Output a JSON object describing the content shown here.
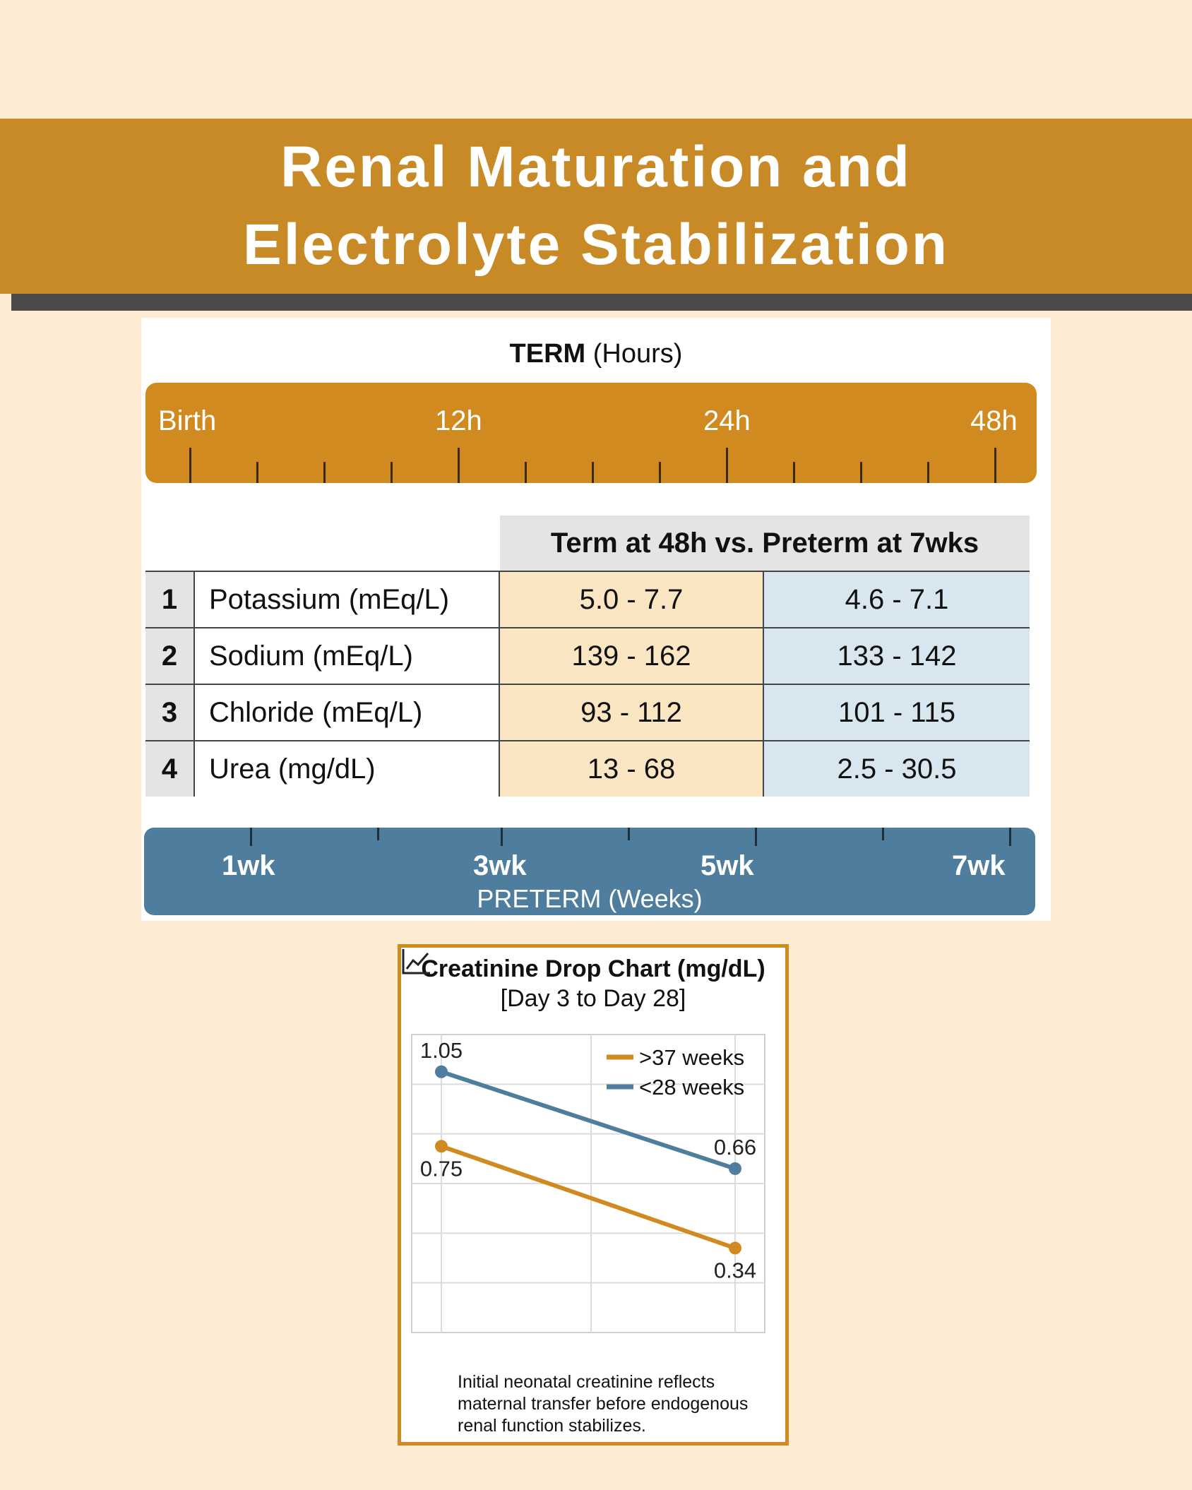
{
  "title": {
    "line1": "Renal Maturation and",
    "line2": "Electrolyte Stabilization"
  },
  "term_timeline": {
    "title_bold": "TERM",
    "title_rest": " (Hours)",
    "labels": [
      "Birth",
      "12h",
      "24h",
      "48h"
    ]
  },
  "table": {
    "header": "Term at 48h vs. Preterm at 7wks",
    "rows": [
      {
        "num": "1",
        "label": "Potassium (mEq/L)",
        "term": "5.0 - 7.7",
        "preterm": "4.6 - 7.1"
      },
      {
        "num": "2",
        "label": "Sodium (mEq/L)",
        "term": "139 - 162",
        "preterm": "133 - 142"
      },
      {
        "num": "3",
        "label": "Chloride (mEq/L)",
        "term": "93 - 112",
        "preterm": "101 - 115"
      },
      {
        "num": "4",
        "label": "Urea (mg/dL)",
        "term": "13 - 68",
        "preterm": "2.5 - 30.5"
      }
    ]
  },
  "preterm_timeline": {
    "title": "PRETERM (Weeks)",
    "labels": [
      "1wk",
      "3wk",
      "5wk",
      "7wk"
    ]
  },
  "chart_data": {
    "type": "line",
    "title": "Creatinine Drop Chart (mg/dL)",
    "subtitle": "[Day 3 to Day 28]",
    "xlabel": "",
    "ylabel": "",
    "x": [
      "Day 3",
      "Day 28"
    ],
    "ylim": [
      0,
      1.2
    ],
    "grid": true,
    "legend": "top-right",
    "series": [
      {
        "name": ">37 weeks",
        "values": [
          0.75,
          0.34
        ],
        "labels": [
          "0.75",
          "0.34"
        ],
        "color": "#d08a20"
      },
      {
        "name": "<28 weeks",
        "values": [
          1.05,
          0.66
        ],
        "labels": [
          "1.05",
          "0.66"
        ],
        "color": "#4e7d9d"
      }
    ]
  },
  "note": {
    "icon": "line-chart-icon",
    "text": "Initial neonatal creatinine reflects maternal transfer before endogenous renal function stabilizes."
  },
  "colors": {
    "background": "#fdebd3",
    "banner": "#c88a27",
    "term": "#d08a20",
    "preterm": "#4e7d9d"
  }
}
